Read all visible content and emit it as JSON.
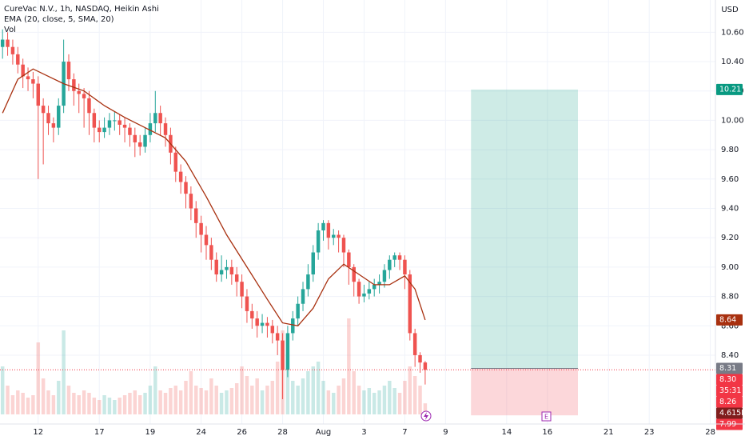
{
  "chart_data": {
    "type": "candlestick",
    "title": "CureVac N.V., 1h, NASDAQ, Heikin Ashi",
    "indicator_label": "EMA (20, close, 5, SMA, 20)",
    "volume_label": "Vol",
    "currency": "USD",
    "up_color": "#26a69a",
    "down_color": "#ef5350",
    "grid": true,
    "ylim": [
      7.92,
      10.82
    ],
    "yticks": [
      {
        "value": 8.4,
        "label": "8.40"
      },
      {
        "value": 8.6,
        "label": "8.60"
      },
      {
        "value": 8.8,
        "label": "8.80"
      },
      {
        "value": 9.0,
        "label": "9.00"
      },
      {
        "value": 9.2,
        "label": "9.20"
      },
      {
        "value": 9.4,
        "label": "9.40"
      },
      {
        "value": 9.6,
        "label": "9.60"
      },
      {
        "value": 9.8,
        "label": "9.80"
      },
      {
        "value": 10.0,
        "label": "10.00"
      },
      {
        "value": 10.2,
        "label": "10.20"
      },
      {
        "value": 10.4,
        "label": "10.40"
      },
      {
        "value": 10.6,
        "label": "10.60"
      }
    ],
    "xlim": [
      -0.5,
      140
    ],
    "xticks": [
      {
        "value": 7,
        "label": "12"
      },
      {
        "value": 19,
        "label": "17"
      },
      {
        "value": 29,
        "label": "19"
      },
      {
        "value": 39,
        "label": "24"
      },
      {
        "value": 47,
        "label": "26"
      },
      {
        "value": 55,
        "label": "28"
      },
      {
        "value": 63,
        "label": "Aug"
      },
      {
        "value": 71,
        "label": "3"
      },
      {
        "value": 79,
        "label": "7"
      },
      {
        "value": 87,
        "label": "9"
      },
      {
        "value": 99,
        "label": "14"
      },
      {
        "value": 107,
        "label": "16"
      },
      {
        "value": 119,
        "label": "21"
      },
      {
        "value": 127,
        "label": "23"
      },
      {
        "value": 139,
        "label": "28"
      }
    ],
    "open": [
      10.5,
      10.55,
      10.5,
      10.45,
      10.38,
      10.3,
      10.28,
      10.25,
      10.1,
      10.05,
      9.98,
      9.95,
      10.1,
      10.4,
      10.28,
      10.2,
      10.18,
      10.15,
      10.05,
      9.95,
      9.92,
      9.95,
      10.0,
      10.0,
      9.97,
      9.95,
      9.9,
      9.85,
      9.82,
      9.9,
      9.98,
      10.05,
      9.98,
      9.9,
      9.78,
      9.65,
      9.58,
      9.5,
      9.4,
      9.3,
      9.22,
      9.15,
      9.05,
      8.95,
      8.98,
      9.0,
      8.95,
      8.9,
      8.8,
      8.7,
      8.65,
      8.6,
      8.62,
      8.6,
      8.55,
      8.5,
      8.3,
      8.55,
      8.65,
      8.75,
      8.85,
      8.95,
      9.1,
      9.25,
      9.3,
      9.2,
      9.22,
      9.2,
      9.1,
      9.0,
      8.9,
      8.8,
      8.82,
      8.85,
      8.88,
      8.9,
      8.98,
      9.05,
      9.08,
      9.05,
      8.95,
      8.55,
      8.4,
      8.35
    ],
    "high": [
      10.62,
      10.6,
      10.55,
      10.5,
      10.42,
      10.36,
      10.33,
      10.3,
      10.15,
      10.1,
      10.02,
      10.15,
      10.55,
      10.45,
      10.32,
      10.25,
      10.22,
      10.2,
      10.08,
      10.0,
      10.02,
      10.05,
      10.06,
      10.04,
      10.02,
      9.98,
      9.95,
      9.9,
      9.95,
      10.05,
      10.2,
      10.1,
      10.02,
      9.95,
      9.82,
      9.7,
      9.62,
      9.55,
      9.45,
      9.35,
      9.28,
      9.2,
      9.1,
      9.08,
      9.05,
      9.05,
      9.0,
      8.95,
      8.85,
      8.75,
      8.7,
      8.68,
      8.66,
      8.64,
      8.6,
      8.55,
      8.6,
      8.7,
      8.8,
      8.9,
      9.02,
      9.15,
      9.3,
      9.32,
      9.32,
      9.26,
      9.25,
      9.22,
      9.12,
      9.02,
      8.92,
      8.88,
      8.9,
      8.92,
      8.95,
      9.02,
      9.08,
      9.1,
      9.1,
      9.08,
      8.98,
      8.58,
      8.42,
      8.36
    ],
    "low": [
      10.42,
      10.44,
      10.38,
      10.32,
      10.22,
      10.2,
      10.15,
      9.6,
      9.7,
      9.9,
      9.85,
      9.9,
      10.05,
      10.2,
      10.1,
      10.05,
      9.95,
      9.9,
      9.85,
      9.85,
      9.88,
      9.9,
      9.93,
      9.9,
      9.85,
      9.82,
      9.75,
      9.76,
      9.78,
      9.85,
      9.92,
      9.9,
      9.82,
      9.7,
      9.58,
      9.5,
      9.4,
      9.32,
      9.2,
      9.1,
      9.05,
      8.98,
      8.9,
      8.9,
      8.92,
      8.88,
      8.8,
      8.72,
      8.62,
      8.58,
      8.52,
      8.55,
      8.52,
      8.48,
      8.4,
      8.1,
      8.25,
      8.5,
      8.6,
      8.7,
      8.8,
      8.9,
      9.05,
      9.18,
      9.12,
      9.15,
      9.1,
      9.0,
      8.88,
      8.8,
      8.75,
      8.76,
      8.78,
      8.8,
      8.82,
      8.86,
      8.92,
      9.0,
      8.98,
      8.85,
      8.5,
      8.32,
      8.28,
      8.2
    ],
    "close": [
      10.55,
      10.5,
      10.45,
      10.38,
      10.3,
      10.28,
      10.25,
      10.1,
      10.05,
      9.98,
      9.95,
      10.1,
      10.4,
      10.28,
      10.2,
      10.18,
      10.15,
      10.05,
      9.95,
      9.92,
      9.95,
      10.0,
      10.0,
      9.97,
      9.95,
      9.9,
      9.85,
      9.82,
      9.9,
      9.98,
      10.05,
      9.98,
      9.9,
      9.78,
      9.65,
      9.58,
      9.5,
      9.4,
      9.3,
      9.22,
      9.15,
      9.05,
      8.95,
      8.98,
      9.0,
      8.95,
      8.9,
      8.8,
      8.7,
      8.65,
      8.6,
      8.62,
      8.6,
      8.55,
      8.5,
      8.3,
      8.55,
      8.65,
      8.75,
      8.85,
      8.95,
      9.1,
      9.25,
      9.3,
      9.2,
      9.22,
      9.2,
      9.1,
      9.0,
      8.9,
      8.8,
      8.82,
      8.85,
      8.88,
      8.9,
      8.98,
      9.05,
      9.08,
      9.05,
      8.95,
      8.55,
      8.4,
      8.35,
      8.3
    ],
    "volume": [
      20,
      12,
      8,
      10,
      9,
      7,
      8,
      30,
      15,
      10,
      8,
      14,
      35,
      12,
      9,
      8,
      10,
      9,
      7,
      6,
      8,
      7,
      6,
      7,
      8,
      9,
      10,
      8,
      9,
      12,
      20,
      10,
      9,
      11,
      12,
      10,
      14,
      18,
      12,
      11,
      10,
      15,
      12,
      9,
      10,
      11,
      13,
      20,
      16,
      12,
      15,
      10,
      12,
      14,
      22,
      35,
      25,
      14,
      12,
      15,
      18,
      20,
      22,
      14,
      10,
      9,
      12,
      15,
      40,
      18,
      12,
      10,
      11,
      9,
      10,
      12,
      14,
      11,
      9,
      14,
      20,
      16,
      12,
      4.615
    ],
    "volume_ylim": [
      0,
      40
    ],
    "ema": {
      "color": "#a8300f",
      "x": [
        0,
        3,
        6,
        9,
        12,
        16,
        20,
        24,
        28,
        32,
        36,
        40,
        44,
        48,
        52,
        55,
        58,
        61,
        64,
        67,
        70,
        73,
        76,
        79,
        81,
        83
      ],
      "values": [
        10.05,
        10.28,
        10.35,
        10.3,
        10.25,
        10.2,
        10.1,
        10.02,
        9.95,
        9.88,
        9.72,
        9.48,
        9.22,
        9.0,
        8.78,
        8.62,
        8.6,
        8.72,
        8.92,
        9.02,
        8.95,
        8.88,
        8.88,
        8.94,
        8.85,
        8.64
      ]
    },
    "position": {
      "x": [
        92,
        113
      ],
      "target": 10.21,
      "entry": 8.31,
      "stop": 7.99
    },
    "price_labels": [
      {
        "value": 10.21,
        "label": "10.21",
        "color": "#089981"
      },
      {
        "value": 8.64,
        "label": "8.64",
        "color": "#a8300f"
      },
      {
        "value": 8.31,
        "label": "8.31",
        "color": "#787b86"
      },
      {
        "value": 8.3,
        "label": "8.30",
        "color": "#f23645"
      },
      {
        "label": "35:31",
        "color": "#f23645"
      },
      {
        "value": 8.26,
        "label": "8.26",
        "color": "#f23645"
      },
      {
        "value": 4.615,
        "label": "4.615K",
        "color": "#7f1d1d"
      },
      {
        "value": 7.99,
        "label": "7.99",
        "color": "#f23645"
      }
    ],
    "earnings_marker": "E"
  }
}
